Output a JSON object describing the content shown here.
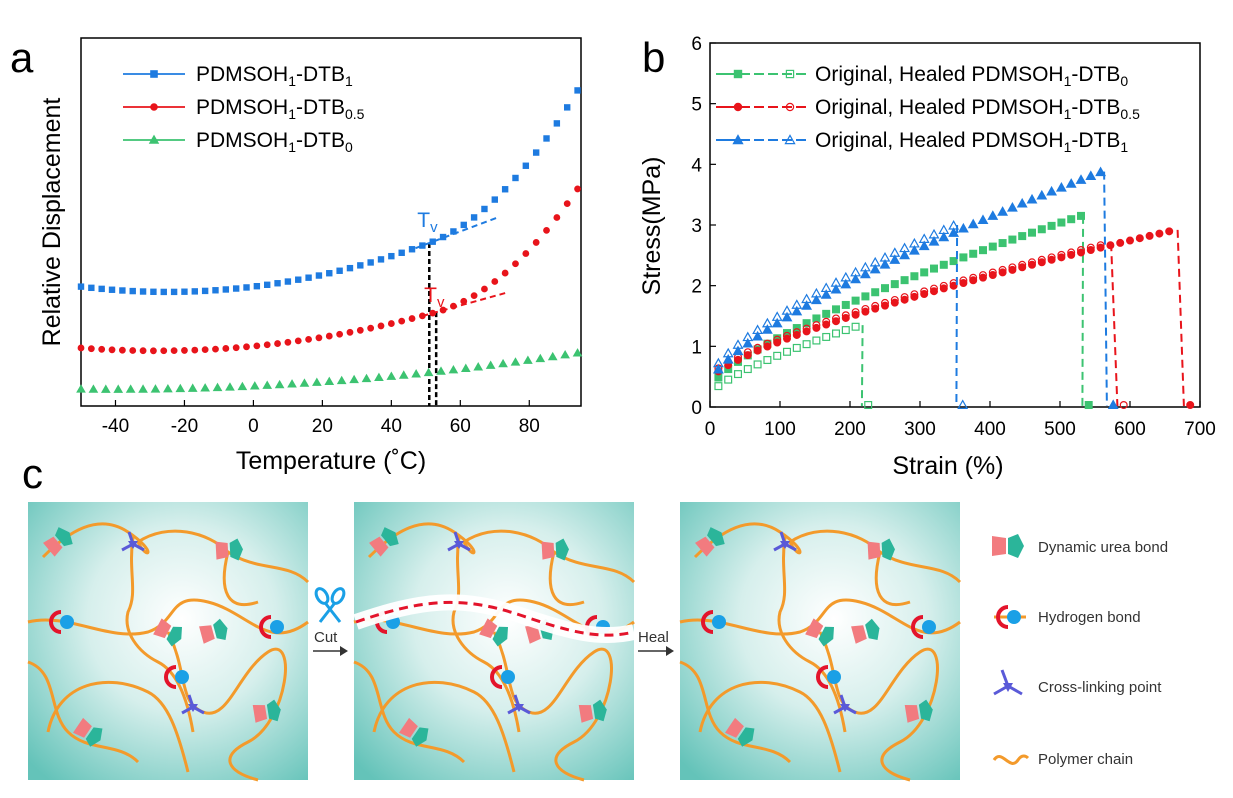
{
  "panels": {
    "a": "a",
    "b": "b",
    "c": "c"
  },
  "chart_data": [
    {
      "id": "a",
      "type": "scatter",
      "title": "",
      "xlabel": "Temperature (˚C)",
      "ylabel": "Relative Displacement",
      "xlim": [
        -50,
        95
      ],
      "ylim": [
        0,
        100
      ],
      "xticks": [
        "-40",
        "-20",
        "0",
        "20",
        "40",
        "60",
        "80"
      ],
      "xtick_values": [
        -40,
        -20,
        0,
        20,
        40,
        60,
        80
      ],
      "series": [
        {
          "name": "PDMSOH1-DTB1",
          "label_main": "PDMSOH",
          "sub1": "1",
          "label_mid": "-DTB",
          "sub2": "1",
          "color": "#1e7be0",
          "marker": "square",
          "params": {
            "base": 31,
            "min_at": -25,
            "k": 0.0023,
            "tv": 51
          }
        },
        {
          "name": "PDMSOH1-DTB0.5",
          "label_main": "PDMSOH",
          "sub1": "1",
          "label_mid": "-DTB",
          "sub2": "0.5",
          "color": "#e8141b",
          "marker": "circle",
          "params": {
            "base": 15,
            "min_at": -28,
            "k": 0.0016,
            "tv": 53
          }
        },
        {
          "name": "PDMSOH1-DTB0",
          "label_main": "PDMSOH",
          "sub1": "1",
          "label_mid": "-DTB",
          "sub2": "0",
          "color": "#3cc371",
          "marker": "triangle",
          "params": {
            "base": 4.5,
            "min_at": -40,
            "k": 0.00055,
            "tv": 999
          }
        }
      ],
      "annotations": [
        {
          "text": "T",
          "sub": "v",
          "color": "#1e7be0",
          "x": 51
        },
        {
          "text": "T",
          "sub": "v",
          "color": "#e8141b",
          "x": 53
        }
      ]
    },
    {
      "id": "b",
      "type": "line",
      "xlabel": "Strain (%)",
      "ylabel": "Stress(MPa)",
      "xlim": [
        0,
        700
      ],
      "ylim": [
        0,
        6
      ],
      "xticks": [
        "0",
        "100",
        "200",
        "300",
        "400",
        "500",
        "600",
        "700"
      ],
      "xtick_values": [
        0,
        100,
        200,
        300,
        400,
        500,
        600,
        700
      ],
      "yticks": [
        "0",
        "1",
        "2",
        "3",
        "4",
        "5",
        "6"
      ],
      "ytick_values": [
        0,
        1,
        2,
        3,
        4,
        5,
        6
      ],
      "series": [
        {
          "name": "Original, Healed PDMSOH1-DTB0",
          "label_main": "Original, Healed PDMSOH",
          "sub1": "1",
          "label_mid": "-DTB",
          "sub2": "0",
          "color": "#3cc371",
          "marker": "square",
          "original": {
            "start": 0.3,
            "end_x": 530,
            "end_y": 3.15,
            "drop_to": 535
          },
          "healed": {
            "start": 0.2,
            "end_x": 215,
            "end_y": 1.35,
            "drop_to": 220
          }
        },
        {
          "name": "Original, Healed PDMSOH1-DTB0.5",
          "label_main": "Original, Healed PDMSOH",
          "sub1": "1",
          "label_mid": "-DTB",
          "sub2": "0.5",
          "color": "#e8141b",
          "marker": "circle",
          "original": {
            "start": 0.45,
            "end_x": 665,
            "end_y": 2.92,
            "drop_to": 680
          },
          "healed": {
            "start": 0.5,
            "end_x": 570,
            "end_y": 2.7,
            "drop_to": 585
          }
        },
        {
          "name": "Original, Healed PDMSOH1-DTB1",
          "label_main": "Original, Healed PDMSOH",
          "sub1": "1",
          "label_mid": "-DTB",
          "sub2": "1",
          "color": "#1e7be0",
          "marker": "triangle",
          "original": {
            "start": 0.4,
            "end_x": 560,
            "end_y": 3.88,
            "drop_to": 570
          },
          "healed": {
            "start": 0.5,
            "end_x": 350,
            "end_y": 3.0,
            "drop_to": 355
          }
        }
      ]
    }
  ],
  "panel_c": {
    "cut_label": "Cut",
    "heal_label": "Heal",
    "legend": [
      {
        "name": "dynamic-urea",
        "label": "Dynamic urea bond",
        "icon": "urea-bond-icon"
      },
      {
        "name": "hydrogen",
        "label": "Hydrogen bond",
        "icon": "hydrogen-bond-icon"
      },
      {
        "name": "crosslink",
        "label": "Cross-linking point",
        "icon": "crosslink-icon"
      },
      {
        "name": "polymer",
        "label": "Polymer chain",
        "icon": "polymer-chain-icon"
      }
    ],
    "colors": {
      "chain": "#f39a2b",
      "urea_a": "#f27b7f",
      "urea_b": "#2bb59a",
      "hbond_red": "#e3142b",
      "hbond_blue": "#1aa0e6",
      "crosslink": "#5a5ad8",
      "panel_bg": "#62c2b8"
    }
  }
}
